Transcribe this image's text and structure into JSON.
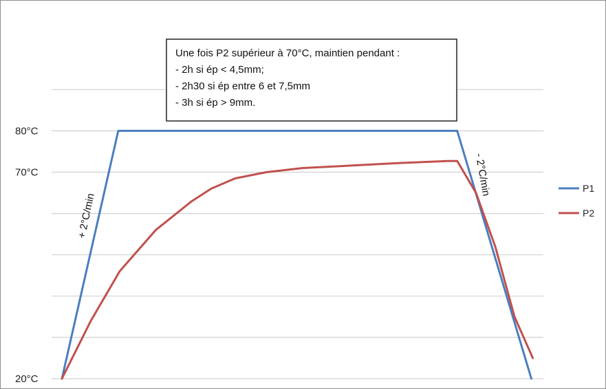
{
  "chart_data": {
    "type": "line",
    "x_unit": "time",
    "y_unit": "°C",
    "ylim": [
      20,
      90
    ],
    "xlim": [
      0,
      100
    ],
    "grid": true,
    "legend_position": "right",
    "y_ticks": [
      {
        "value": 20,
        "label": "20°C"
      },
      {
        "value": 70,
        "label": "70°C"
      },
      {
        "value": 80,
        "label": "80°C"
      }
    ],
    "gridline_values": [
      20,
      30,
      40,
      50,
      60,
      70,
      80,
      90
    ],
    "colors": {
      "P1": "#4a7ebf",
      "P2": "#c0504d"
    },
    "series": [
      {
        "name": "P1",
        "color": "#4a7ebf",
        "points": [
          {
            "x": 0,
            "y": 20
          },
          {
            "x": 11.7,
            "y": 80
          },
          {
            "x": 82.1,
            "y": 80
          },
          {
            "x": 97.5,
            "y": 20
          }
        ]
      },
      {
        "name": "P2",
        "color": "#c0504d",
        "points": [
          {
            "x": 0,
            "y": 20
          },
          {
            "x": 6,
            "y": 34
          },
          {
            "x": 12,
            "y": 46
          },
          {
            "x": 19.5,
            "y": 56
          },
          {
            "x": 27,
            "y": 63
          },
          {
            "x": 31,
            "y": 66
          },
          {
            "x": 36,
            "y": 68.5
          },
          {
            "x": 42.5,
            "y": 70
          },
          {
            "x": 50,
            "y": 71
          },
          {
            "x": 60,
            "y": 71.6
          },
          {
            "x": 70,
            "y": 72.2
          },
          {
            "x": 80,
            "y": 72.7
          },
          {
            "x": 82.1,
            "y": 72.7
          },
          {
            "x": 86,
            "y": 65
          },
          {
            "x": 90,
            "y": 52
          },
          {
            "x": 94,
            "y": 35
          },
          {
            "x": 97.8,
            "y": 25
          }
        ]
      }
    ],
    "annotations": {
      "box_lines": [
        "Une fois P2 supérieur à 70°C, maintien pendant :",
        "- 2h si ép < 4,5mm;",
        "- 2h30 si ép entre 6 et 7,5mm",
        "- 3h si ép > 9mm."
      ],
      "ramp_up": "+ 2°C/min",
      "ramp_down": "- 2°C/min"
    }
  }
}
